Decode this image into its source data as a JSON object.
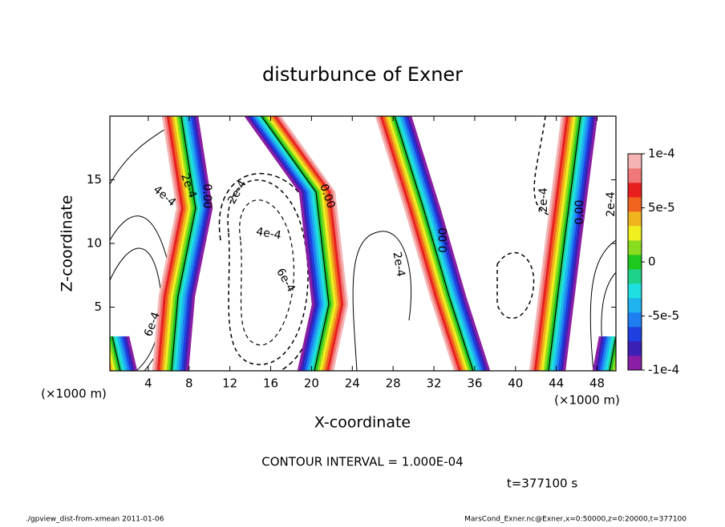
{
  "chart_data": {
    "type": "contour",
    "title": "disturbunce of Exner",
    "x_label": "X-coordinate",
    "y_label": "Z-coordinate",
    "x_unit_left": "(×1000 m)",
    "x_unit_right": "(×1000 m)",
    "xlim": [
      0,
      50
    ],
    "ylim": [
      0,
      20
    ],
    "xticks": [
      4,
      8,
      12,
      16,
      20,
      24,
      28,
      32,
      36,
      40,
      44,
      48
    ],
    "yticks": [
      5,
      10,
      15
    ],
    "colorbar": {
      "lim": [
        -0.0001,
        0.0001
      ],
      "ticks": [
        {
          "value": 0.0001,
          "label": "1e-4"
        },
        {
          "value": 5e-05,
          "label": "5e-5"
        },
        0,
        {
          "value": -5e-05,
          "label": "-5e-5"
        },
        {
          "value": -0.0001,
          "label": "-1e-4"
        }
      ],
      "colors": [
        "#8a1fa6",
        "#3c1fb4",
        "#1f3fe0",
        "#1f7ff0",
        "#1fb4f0",
        "#1fe0e0",
        "#1fd28a",
        "#1fc81f",
        "#8adc1f",
        "#f0f01f",
        "#f0b41f",
        "#f0641f",
        "#e81f1f",
        "#f07878",
        "#f5b4b4"
      ]
    },
    "contour_labels": [
      "2e-4",
      "0.00",
      "4e-4",
      "2e-4",
      "4e-4",
      "6e-4",
      "0.00",
      "6e-4",
      "2e-4",
      "0.00",
      "2e-4",
      "0.00",
      "2e-4"
    ],
    "contour_interval": "CONTOUR INTERVAL = 1.000E-04",
    "time_label": "t=377100 s",
    "footer_left": "./gpview_dist-from-xmean  2011-01-06",
    "footer_right": "MarsCond_Exner.nc@Exner,x=0:50000,z=0:20000,t=377100"
  }
}
